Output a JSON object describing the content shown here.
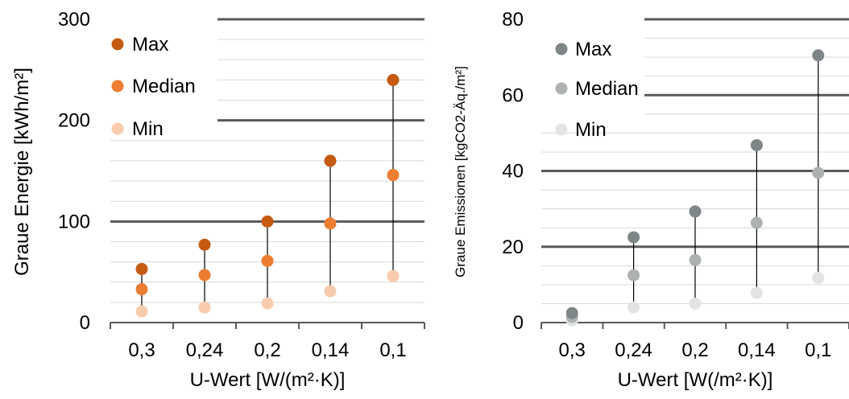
{
  "chart_data": [
    {
      "type": "scatter",
      "title": "",
      "xlabel": "U-Wert [W/(m²·K)]",
      "ylabel": "Graue Energie [kWh/m²]",
      "categories": [
        "0,3",
        "0,24",
        "0,2",
        "0,14",
        "0,1"
      ],
      "ylim": [
        0,
        300
      ],
      "yticks": [
        "0",
        "100",
        "200",
        "300"
      ],
      "grid": true,
      "legend_placement": "top-left",
      "series": [
        {
          "name": "Max",
          "color": "#C55A11",
          "values": [
            53,
            77,
            100,
            160,
            240
          ]
        },
        {
          "name": "Median",
          "color": "#ED7D31",
          "values": [
            33,
            47,
            61,
            98,
            146
          ]
        },
        {
          "name": "Min",
          "color": "#F8CBAD",
          "values": [
            11,
            15,
            19,
            31,
            46
          ]
        }
      ]
    },
    {
      "type": "scatter",
      "title": "",
      "xlabel": "U-Wert [W(/m²·K)]",
      "ylabel": "Graue Emissionen [kgCO2-Äq./m²]",
      "categories": [
        "0,3",
        "0,24",
        "0,2",
        "0,14",
        "0,1"
      ],
      "ylim": [
        0,
        80
      ],
      "yticks": [
        "0",
        "20",
        "40",
        "60",
        "80"
      ],
      "grid": true,
      "legend_placement": "top-left",
      "series": [
        {
          "name": "Max",
          "color": "#7F8687",
          "values": [
            2.5,
            22.5,
            29.3,
            46.8,
            70.5
          ]
        },
        {
          "name": "Median",
          "color": "#AEB1B2",
          "values": [
            1.5,
            12.5,
            16.5,
            26.3,
            39.5
          ]
        },
        {
          "name": "Min",
          "color": "#E2E4E4",
          "values": [
            0.6,
            4,
            5,
            7.8,
            11.8
          ]
        }
      ]
    }
  ]
}
